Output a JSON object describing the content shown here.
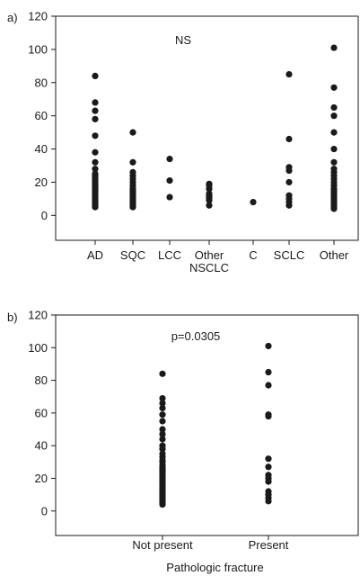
{
  "chart_data": [
    {
      "panel_label": "a)",
      "type": "scatter",
      "annotation": "NS",
      "title": "",
      "xlabel": "",
      "ylabel": "",
      "ylim": [
        -15,
        120
      ],
      "yticks": [
        0,
        20,
        40,
        60,
        80,
        100,
        120
      ],
      "grid": false,
      "categories": [
        {
          "label": [
            "AD"
          ],
          "values": [
            84,
            68,
            63,
            58,
            48,
            38,
            32,
            28,
            25,
            24,
            23,
            22,
            21,
            20,
            19,
            18,
            17,
            16,
            15,
            14,
            13,
            12,
            11,
            10,
            9,
            8,
            7,
            6,
            5
          ]
        },
        {
          "label": [
            "SQC"
          ],
          "values": [
            50,
            32,
            26,
            24,
            22,
            20,
            18,
            16,
            15,
            14,
            13,
            12,
            11,
            10,
            9,
            8,
            7,
            6,
            5
          ]
        },
        {
          "label": [
            "LCC"
          ],
          "values": [
            34,
            21,
            11
          ]
        },
        {
          "label": [
            "Other",
            "NSCLC"
          ],
          "values": [
            19,
            18,
            16,
            13,
            12,
            11,
            10,
            9,
            6
          ]
        },
        {
          "label": [
            "C"
          ],
          "values": [
            8
          ]
        },
        {
          "label": [
            "SCLC"
          ],
          "values": [
            85,
            46,
            29,
            27,
            20,
            12,
            10,
            8,
            6
          ]
        },
        {
          "label": [
            "Other"
          ],
          "values": [
            101,
            77,
            65,
            60,
            50,
            40,
            32,
            28,
            26,
            24,
            22,
            20,
            18,
            16,
            15,
            14,
            13,
            12,
            11,
            10,
            9,
            8,
            7,
            6,
            5,
            4
          ]
        }
      ]
    },
    {
      "panel_label": "b)",
      "type": "scatter",
      "annotation": "p=0.0305",
      "title": "",
      "xlabel": "Pathologic fracture",
      "ylabel": "",
      "ylim": [
        -15,
        120
      ],
      "yticks": [
        0,
        20,
        40,
        60,
        80,
        100,
        120
      ],
      "grid": false,
      "categories": [
        {
          "label": [
            "Not present"
          ],
          "values": [
            84,
            69,
            66,
            63,
            59,
            55,
            50,
            47,
            44,
            40,
            38,
            35,
            33,
            31,
            30,
            28,
            27,
            26,
            25,
            24,
            23,
            22,
            21,
            20,
            19,
            18,
            17,
            16,
            15,
            14,
            13,
            12,
            11,
            10,
            9,
            8,
            7,
            6,
            5,
            4
          ]
        },
        {
          "label": [
            "Present"
          ],
          "values": [
            101,
            85,
            77,
            59,
            58,
            32,
            27,
            22,
            20,
            18,
            12,
            10,
            8,
            6
          ]
        }
      ]
    }
  ]
}
